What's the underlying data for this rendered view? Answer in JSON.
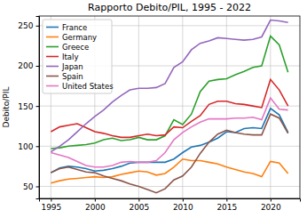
{
  "chart_data": {
    "type": "line",
    "title": "Rapporto Debito/PIL, 1995 - 2022",
    "y_label": "Debito/PIL",
    "x": [
      1995,
      1996,
      1997,
      1998,
      1999,
      2000,
      2001,
      2002,
      2003,
      2004,
      2005,
      2006,
      2007,
      2008,
      2009,
      2010,
      2011,
      2012,
      2013,
      2014,
      2015,
      2016,
      2017,
      2018,
      2019,
      2020,
      2021,
      2022
    ],
    "xlim": [
      1993.65,
      2023.35
    ],
    "xticks": [
      1995,
      2000,
      2005,
      2010,
      2015,
      2020
    ],
    "ylim": [
      35,
      262
    ],
    "yticks": [
      50,
      100,
      150,
      200,
      250
    ],
    "grid": true,
    "legend": "upper left",
    "series": [
      {
        "name": "France",
        "color": "#1f77b4",
        "values": [
          67,
          73,
          75,
          74,
          72,
          69,
          70,
          72,
          75,
          79,
          80,
          80,
          80,
          80,
          84,
          92,
          99,
          101,
          105,
          110,
          118,
          117,
          122,
          123,
          122,
          147,
          139,
          117
        ]
      },
      {
        "name": "Germany",
        "color": "#ff7f0e",
        "values": [
          54,
          57,
          59,
          60,
          61,
          62,
          61,
          62,
          65,
          67,
          69,
          68,
          64,
          66,
          74,
          84,
          82,
          82,
          80,
          78,
          74,
          71,
          68,
          66,
          62,
          81,
          79,
          66
        ]
      },
      {
        "name": "Greece",
        "color": "#2ca02c",
        "values": [
          97,
          98,
          100,
          101,
          102,
          104,
          108,
          110,
          107,
          108,
          111,
          108,
          108,
          113,
          133,
          127,
          140,
          168,
          181,
          183,
          184,
          189,
          193,
          198,
          200,
          237,
          226,
          192
        ]
      },
      {
        "name": "Italy",
        "color": "#d62728",
        "values": [
          118,
          124,
          126,
          128,
          123,
          118,
          116,
          113,
          111,
          111,
          113,
          115,
          113,
          114,
          124,
          123,
          131,
          138,
          152,
          156,
          156,
          153,
          152,
          150,
          148,
          183,
          170,
          150
        ]
      },
      {
        "name": "Japan",
        "color": "#9467bd",
        "values": [
          93,
          100,
          108,
          118,
          128,
          137,
          145,
          155,
          163,
          170,
          172,
          172,
          173,
          178,
          198,
          205,
          220,
          228,
          231,
          235,
          234,
          233,
          232,
          233,
          236,
          257,
          256,
          254
        ]
      },
      {
        "name": "Spain",
        "color": "#8c564b",
        "values": [
          67,
          72,
          74,
          71,
          68,
          67,
          63,
          60,
          57,
          53,
          50,
          46,
          42,
          47,
          58,
          63,
          74,
          91,
          105,
          115,
          120,
          117,
          115,
          114,
          114,
          140,
          135,
          116
        ]
      },
      {
        "name": "United States",
        "color": "#e377c2",
        "values": [
          92,
          89,
          86,
          81,
          76,
          74,
          74,
          76,
          80,
          81,
          80,
          80,
          82,
          92,
          108,
          117,
          124,
          130,
          134,
          134,
          134,
          135,
          135,
          136,
          133,
          160,
          146,
          145
        ]
      }
    ]
  }
}
